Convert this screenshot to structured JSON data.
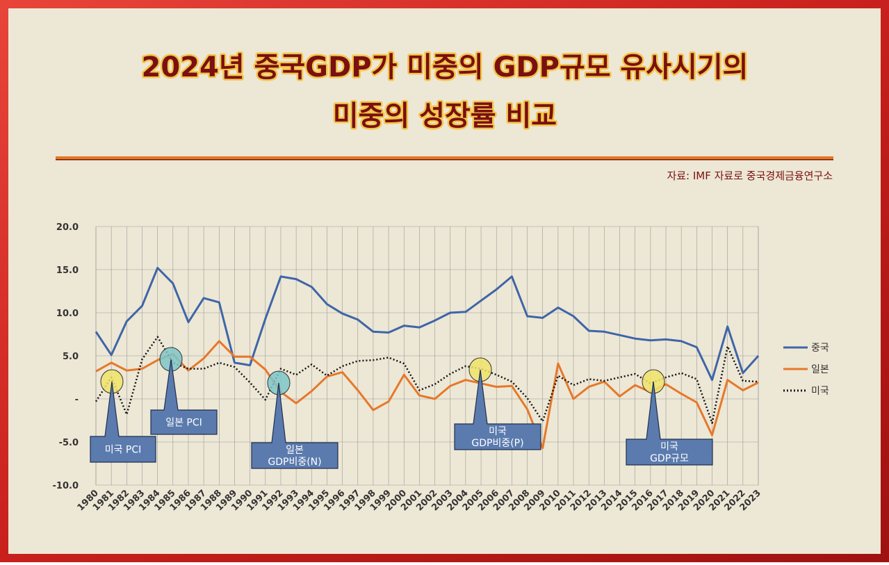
{
  "title_lines": [
    "2024년 중국GDP가 미중의 GDP규모 유사시기의",
    "미중의 성장률 비교"
  ],
  "source": "자료: IMF 자료로 중국경제금융연구소",
  "annotations": [
    {
      "lines": [
        "미국 PCI"
      ]
    },
    {
      "lines": [
        "일본 PCI"
      ]
    },
    {
      "lines": [
        "일본",
        "GDP비중(N)"
      ]
    },
    {
      "lines": [
        "미국",
        "GDP비중(P)"
      ]
    },
    {
      "lines": [
        "미국",
        "GDP규모"
      ]
    }
  ],
  "chart_data": {
    "type": "line",
    "categories": [
      "1980",
      "1981",
      "1982",
      "1983",
      "1984",
      "1985",
      "1986",
      "1987",
      "1988",
      "1989",
      "1990",
      "1991",
      "1992",
      "1993",
      "1994",
      "1995",
      "1996",
      "1997",
      "1998",
      "1999",
      "2000",
      "2001",
      "2002",
      "2003",
      "2004",
      "2005",
      "2006",
      "2007",
      "2008",
      "2009",
      "2010",
      "2011",
      "2012",
      "2013",
      "2014",
      "2015",
      "2016",
      "2017",
      "2018",
      "2019",
      "2020",
      "2021",
      "2022",
      "2023"
    ],
    "series": [
      {
        "name": "중국",
        "color": "#3e65a8",
        "dash": "solid",
        "values": [
          7.8,
          5.1,
          9.0,
          10.8,
          15.2,
          13.4,
          8.9,
          11.7,
          11.2,
          4.2,
          3.9,
          9.3,
          14.2,
          13.9,
          13.0,
          11.0,
          9.9,
          9.2,
          7.8,
          7.7,
          8.5,
          8.3,
          9.1,
          10.0,
          10.1,
          11.4,
          12.7,
          14.2,
          9.6,
          9.4,
          10.6,
          9.6,
          7.9,
          7.8,
          7.4,
          7.0,
          6.8,
          6.9,
          6.7,
          6.0,
          2.2,
          8.4,
          3.0,
          5.0
        ]
      },
      {
        "name": "일본",
        "color": "#e6782a",
        "dash": "solid",
        "values": [
          3.2,
          4.2,
          3.3,
          3.5,
          4.5,
          5.2,
          3.3,
          4.7,
          6.7,
          4.9,
          4.9,
          3.4,
          0.8,
          -0.5,
          0.9,
          2.6,
          3.1,
          1.0,
          -1.3,
          -0.3,
          2.8,
          0.4,
          0.0,
          1.5,
          2.2,
          1.8,
          1.4,
          1.5,
          -1.2,
          -5.7,
          4.1,
          0.0,
          1.4,
          2.0,
          0.3,
          1.6,
          0.8,
          1.7,
          0.6,
          -0.4,
          -4.2,
          2.2,
          1.0,
          1.9
        ]
      },
      {
        "name": "미국",
        "color": "#111111",
        "dash": "dotted",
        "values": [
          -0.3,
          2.5,
          -1.8,
          4.6,
          7.2,
          4.2,
          3.5,
          3.5,
          4.2,
          3.7,
          1.9,
          -0.1,
          3.5,
          2.8,
          4.0,
          2.7,
          3.8,
          4.4,
          4.5,
          4.8,
          4.1,
          1.0,
          1.7,
          2.9,
          3.8,
          3.5,
          2.8,
          2.0,
          0.1,
          -2.6,
          2.7,
          1.6,
          2.3,
          2.1,
          2.5,
          2.9,
          1.8,
          2.5,
          3.0,
          2.3,
          -2.8,
          6.1,
          2.1,
          2.0
        ]
      }
    ],
    "ylim": [
      -10,
      20
    ],
    "yticks": [
      {
        "value": -10,
        "label": "-10.0"
      },
      {
        "value": -5,
        "label": "-5.0"
      },
      {
        "value": 0,
        "label": "-"
      },
      {
        "value": 5,
        "label": "5.0"
      },
      {
        "value": 10,
        "label": "10.0"
      },
      {
        "value": 15,
        "label": "15.0"
      },
      {
        "value": 20,
        "label": "20.0"
      }
    ],
    "grid": true,
    "legend": "right"
  }
}
